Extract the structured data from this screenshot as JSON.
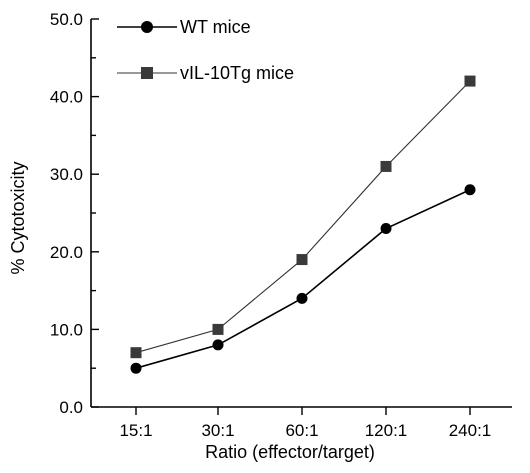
{
  "chart_data": {
    "type": "line",
    "categories": [
      "15:1",
      "30:1",
      "60:1",
      "120:1",
      "240:1"
    ],
    "xlabel": "Ratio (effector/target)",
    "ylabel": "% Cytotoxicity",
    "ylim": [
      0,
      50
    ],
    "yticks": [
      "0.0",
      "10.0",
      "20.0",
      "30.0",
      "40.0",
      "50.0"
    ],
    "grid": false,
    "legend_position": "top-left",
    "series": [
      {
        "name": "WT mice",
        "marker": "circle",
        "color": "#000000",
        "values": [
          5.0,
          8.0,
          14.0,
          23.0,
          28.0
        ]
      },
      {
        "name": "vIL-10Tg mice",
        "marker": "square",
        "color": "#3a3a3a",
        "values": [
          7.0,
          10.0,
          19.0,
          31.0,
          42.0
        ]
      }
    ]
  }
}
